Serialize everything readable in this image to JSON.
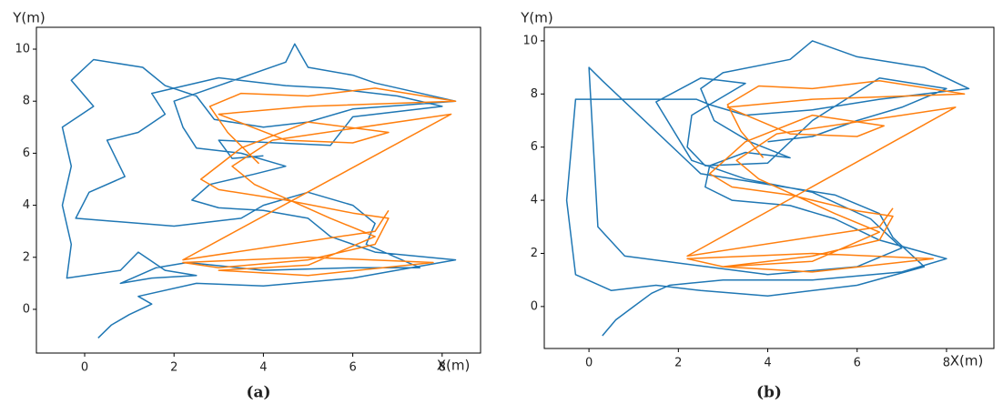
{
  "chart_data": [
    {
      "type": "line",
      "xlabel": "X(m)",
      "ylabel": "Y(m)",
      "caption": "(a)",
      "xlim": [
        -1.08,
        8.86
      ],
      "ylim": [
        -1.68,
        10.84
      ],
      "xticks": [
        0,
        2,
        4,
        6,
        8
      ],
      "yticks": [
        0,
        2,
        4,
        6,
        8,
        10
      ],
      "series": [
        {
          "color": "#1f77b4",
          "x": [
            0.3,
            0.6,
            1,
            1.5,
            1.2,
            2.5,
            4,
            6,
            8.3,
            6.5,
            5.5,
            5,
            4,
            3,
            2.4,
            2.8,
            3.8,
            4.5,
            3.5,
            2.5,
            2.2,
            2,
            3,
            4.5,
            4.7,
            5,
            6,
            6.5,
            8.3,
            6,
            5,
            4,
            2.9,
            2.5,
            1.8,
            1.3,
            0.2,
            -0.3,
            0.2,
            -0.5,
            -0.3,
            -0.5,
            -0.3,
            -0.4,
            0.8,
            1.2,
            1.8,
            2.5,
            1.5,
            0.8,
            1.6,
            2.3,
            4,
            6,
            7.5,
            6.3,
            6.5,
            6,
            5,
            4,
            3.5,
            2,
            -0.2,
            0.1,
            0.9,
            0.5,
            1.2,
            1.8,
            1.5,
            3,
            4.5,
            5.5,
            7,
            8,
            6,
            5.5,
            3,
            3.3,
            4
          ],
          "values": [
            -1.1,
            -0.6,
            -0.2,
            0.2,
            0.5,
            1,
            0.9,
            1.2,
            1.9,
            2.2,
            2.8,
            3.5,
            3.8,
            3.9,
            4.2,
            4.8,
            5.2,
            5.5,
            6,
            6.2,
            7,
            8,
            8.6,
            9.5,
            10.2,
            9.3,
            9,
            8.7,
            8,
            7.7,
            7.2,
            7,
            7.3,
            8.2,
            8.6,
            9.3,
            9.6,
            8.8,
            7.8,
            7,
            5.5,
            4,
            2.5,
            1.2,
            1.5,
            2.2,
            1.5,
            1.3,
            1.2,
            1,
            1.6,
            1.8,
            1.5,
            1.6,
            1.6,
            2.5,
            3.3,
            4,
            4.5,
            4,
            3.5,
            3.2,
            3.5,
            4.5,
            5.1,
            6.5,
            6.8,
            7.5,
            8.3,
            8.9,
            8.6,
            8.5,
            8.2,
            7.8,
            7.4,
            6.3,
            6.5,
            5.8,
            5.9
          ]
        },
        {
          "color": "#ff7f0e",
          "x": [
            3.9,
            3.2,
            2.8,
            3.5,
            5,
            6.5,
            8.3,
            5,
            3,
            4.5,
            6,
            6.8,
            5,
            3.5,
            2.6,
            3,
            4.5,
            6,
            6.8,
            6.5,
            5,
            3,
            2.2,
            5,
            7.8,
            5,
            3,
            5,
            6.5,
            5.5,
            3.8,
            3.3,
            4.2,
            8.2,
            2.2,
            6.5,
            6.8
          ],
          "values": [
            5.6,
            6.8,
            7.8,
            8.3,
            8.2,
            8.5,
            8,
            7.8,
            7.5,
            6.5,
            6.4,
            6.8,
            7.2,
            6.2,
            5,
            4.6,
            4.2,
            3.7,
            3.5,
            2.5,
            1.9,
            1.6,
            1.8,
            2,
            1.8,
            1.3,
            1.5,
            1.7,
            2.8,
            3.5,
            4.8,
            5.5,
            6.5,
            7.5,
            1.9,
            3,
            3.8
          ]
        }
      ]
    },
    {
      "type": "line",
      "xlabel": "X(m)",
      "ylabel": "Y(m)",
      "caption": "(b)",
      "xlim": [
        -1.0,
        9.06
      ],
      "ylim": [
        -1.58,
        10.51
      ],
      "xticks": [
        0,
        2,
        4,
        6,
        8
      ],
      "yticks": [
        0,
        2,
        4,
        6,
        8,
        10
      ],
      "series": [
        {
          "color": "#1f77b4",
          "x": [
            0.3,
            0.6,
            1,
            1.4,
            1.8,
            3,
            5,
            7,
            8,
            6.5,
            5.5,
            4.5,
            3.2,
            2.6,
            2.7,
            3.5,
            4.5,
            3.6,
            2.8,
            2.5,
            3,
            4.5,
            5,
            6,
            7.5,
            8.5,
            6.5,
            5,
            3.5,
            2.7,
            2.4,
            -0.3,
            -0.5,
            -0.3,
            0.5,
            1.5,
            2.5,
            4,
            6,
            7.5,
            6.8,
            6.5,
            5.5,
            4,
            2.5,
            0.3,
            0,
            0.2,
            0.8,
            4,
            6,
            7,
            6.3,
            5,
            3.5,
            2.3,
            1.5,
            2.5,
            3.5,
            2.3,
            2.2,
            2.6,
            4,
            5,
            6.5,
            8,
            7,
            6,
            5,
            4
          ],
          "values": [
            -1.1,
            -0.5,
            0,
            0.5,
            0.8,
            1,
            1,
            1.3,
            1.8,
            2.5,
            3.3,
            3.8,
            4,
            4.5,
            5.3,
            5.8,
            5.6,
            6.2,
            7,
            8.2,
            8.8,
            9.3,
            10,
            9.4,
            9,
            8.2,
            7.8,
            7.4,
            7.2,
            7.6,
            7.8,
            7.8,
            4,
            1.2,
            0.6,
            0.8,
            0.6,
            0.4,
            0.8,
            1.5,
            2.6,
            3.5,
            4.2,
            4.6,
            5,
            8.5,
            9,
            3,
            1.9,
            1.2,
            1.5,
            2.2,
            3.3,
            4.3,
            4.8,
            5.5,
            7.7,
            8.6,
            8.4,
            7.2,
            6,
            5.3,
            5.4,
            7,
            8.6,
            8.2,
            7.5,
            7,
            6.4,
            6.2
          ]
        },
        {
          "color": "#ff7f0e",
          "x": [
            3.9,
            3.4,
            3.1,
            3.8,
            5,
            6.5,
            8.4,
            5,
            3.1,
            4.5,
            6,
            6.6,
            5,
            3.5,
            2.7,
            3.2,
            4.5,
            6,
            6.8,
            6.5,
            5,
            3,
            2.2,
            5,
            7.7,
            5,
            3,
            5,
            6.5,
            5.5,
            3.8,
            3.3,
            4.2,
            8.2,
            2.2,
            6.5,
            6.8
          ],
          "values": [
            5.6,
            6.6,
            7.6,
            8.3,
            8.2,
            8.5,
            8,
            7.8,
            7.5,
            6.5,
            6.4,
            6.8,
            7.2,
            6.2,
            5,
            4.5,
            4.2,
            3.6,
            3.4,
            2.5,
            1.9,
            1.5,
            1.8,
            2,
            1.8,
            1.3,
            1.5,
            1.7,
            2.8,
            3.5,
            4.8,
            5.5,
            6.5,
            7.5,
            1.9,
            3,
            3.7
          ]
        }
      ]
    }
  ]
}
